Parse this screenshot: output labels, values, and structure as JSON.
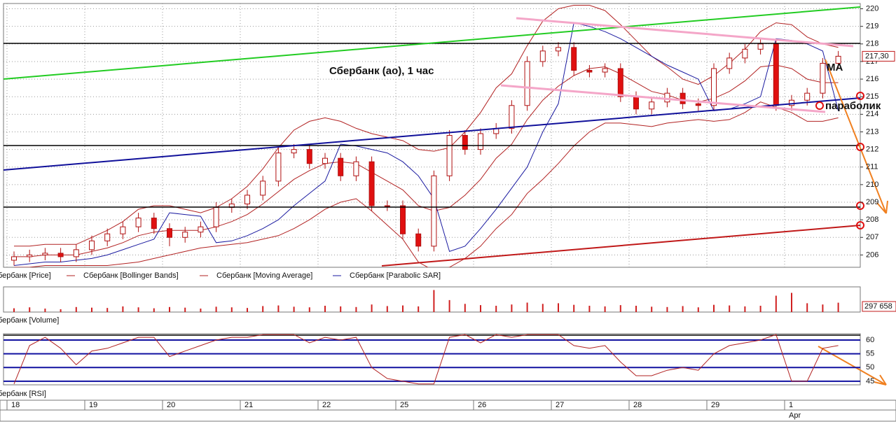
{
  "chart_data": [
    {
      "type": "candlestick",
      "name": "бербанк [Price]",
      "title": "Сбербанк (ао),   1 час",
      "annotations": [
        "MA",
        "параболик"
      ],
      "categories": [
        "18",
        null,
        null,
        null,
        null,
        "19",
        null,
        null,
        null,
        null,
        "20",
        null,
        null,
        null,
        null,
        "21",
        null,
        null,
        null,
        null,
        "22",
        null,
        null,
        null,
        null,
        "25",
        null,
        null,
        null,
        null,
        "26",
        null,
        null,
        null,
        null,
        "27",
        null,
        null,
        null,
        null,
        "28",
        null,
        null,
        null,
        null,
        "29",
        null,
        null,
        null,
        null,
        "1",
        null,
        null,
        null
      ],
      "x_sublabel": "Apr",
      "open": [
        205.7,
        205.9,
        206.0,
        206.1,
        205.9,
        206.3,
        206.8,
        207.2,
        207.6,
        208.1,
        207.5,
        207.0,
        207.3,
        207.6,
        208.7,
        208.9,
        209.4,
        210.2,
        211.8,
        212.0,
        211.2,
        211.5,
        210.5,
        211.3,
        208.8,
        208.8,
        207.2,
        206.5,
        210.5,
        212.8,
        212.0,
        212.9,
        213.2,
        214.5,
        217.0,
        217.6,
        217.8,
        216.5,
        216.4,
        216.6,
        215.0,
        214.3,
        214.7,
        215.2,
        214.6,
        214.5,
        216.6,
        217.2,
        217.7,
        218.0,
        214.5,
        214.8,
        215.2,
        216.9
      ],
      "high": [
        206.2,
        206.3,
        206.4,
        206.4,
        206.6,
        207.1,
        207.5,
        207.9,
        208.4,
        208.4,
        207.8,
        207.6,
        207.9,
        209.0,
        209.2,
        209.7,
        210.5,
        212.1,
        212.3,
        212.3,
        211.8,
        211.8,
        211.6,
        211.6,
        209.1,
        209.1,
        207.5,
        210.8,
        213.1,
        213.1,
        213.2,
        213.5,
        214.8,
        217.3,
        217.9,
        218.1,
        218.1,
        216.8,
        216.9,
        216.9,
        215.3,
        215.0,
        215.5,
        215.5,
        214.9,
        216.9,
        217.5,
        218.0,
        218.3,
        218.3,
        215.1,
        215.5,
        217.2,
        217.6
      ],
      "low": [
        205.4,
        205.6,
        205.7,
        205.6,
        205.6,
        206.0,
        206.5,
        206.9,
        207.3,
        207.2,
        206.5,
        206.7,
        207.0,
        207.3,
        208.4,
        208.6,
        209.1,
        209.9,
        211.5,
        210.9,
        210.9,
        210.2,
        210.2,
        208.5,
        208.5,
        206.9,
        206.2,
        206.2,
        210.2,
        211.7,
        211.7,
        212.6,
        212.9,
        214.2,
        216.7,
        217.3,
        216.2,
        216.1,
        216.1,
        214.7,
        214.0,
        214.0,
        214.4,
        214.3,
        214.2,
        214.2,
        216.3,
        216.9,
        217.4,
        214.2,
        214.2,
        214.5,
        214.9,
        216.6
      ],
      "close": [
        205.9,
        206.0,
        206.1,
        205.9,
        206.3,
        206.8,
        207.2,
        207.6,
        208.1,
        207.5,
        207.0,
        207.3,
        207.6,
        208.7,
        208.9,
        209.4,
        210.2,
        211.8,
        212.0,
        211.2,
        211.5,
        210.5,
        211.3,
        208.8,
        208.8,
        207.2,
        206.5,
        210.5,
        212.8,
        212.0,
        212.9,
        213.2,
        214.5,
        217.0,
        217.6,
        217.8,
        216.5,
        216.4,
        216.6,
        215.0,
        214.3,
        214.7,
        215.2,
        214.6,
        214.5,
        216.6,
        217.2,
        217.7,
        218.0,
        214.5,
        214.8,
        215.2,
        216.9,
        217.3
      ],
      "up_color": "#ffffff",
      "down_color": "#e01010",
      "edge_color": "#b01010",
      "series": [
        {
          "name": "Сбербанк [Bollinger Bands]",
          "color": "#b22222",
          "upper": [
            206.5,
            206.5,
            206.6,
            206.6,
            206.6,
            207.0,
            207.4,
            207.9,
            208.6,
            208.8,
            208.8,
            208.6,
            208.4,
            208.7,
            209.2,
            209.9,
            210.9,
            212.1,
            213.1,
            213.6,
            213.8,
            213.6,
            213.2,
            212.9,
            212.7,
            212.5,
            212.0,
            211.9,
            212.1,
            213.0,
            214.1,
            215.5,
            216.3,
            217.9,
            219.3,
            220.0,
            220.2,
            220.2,
            219.9,
            219.1,
            218.2,
            217.3,
            216.7,
            216.0,
            215.7,
            216.2,
            216.9,
            217.7,
            218.7,
            219.2,
            219.1,
            218.4,
            218.0,
            217.8
          ],
          "lower": [
            205.3,
            205.3,
            205.4,
            205.4,
            205.4,
            205.4,
            205.4,
            205.5,
            205.6,
            205.8,
            206.0,
            206.2,
            206.4,
            206.5,
            206.6,
            206.7,
            206.9,
            207.1,
            207.5,
            208.0,
            208.6,
            209.0,
            209.2,
            208.5,
            207.7,
            206.9,
            205.6,
            205.1,
            205.3,
            205.8,
            206.5,
            207.5,
            208.3,
            209.5,
            210.3,
            211.2,
            212.2,
            213.0,
            213.5,
            213.5,
            213.4,
            213.3,
            213.5,
            213.6,
            213.7,
            213.6,
            213.7,
            214.1,
            214.7,
            214.4,
            214.1,
            213.6,
            213.6,
            213.8
          ]
        },
        {
          "name": "Сбербанк [Moving Average]",
          "color": "#b22222",
          "values": [
            205.9,
            205.9,
            206.0,
            206.0,
            206.0,
            206.2,
            206.4,
            206.7,
            207.1,
            207.3,
            207.4,
            207.4,
            207.4,
            207.6,
            207.9,
            208.3,
            208.9,
            209.6,
            210.3,
            210.8,
            211.2,
            211.3,
            211.2,
            210.7,
            210.2,
            209.7,
            208.8,
            208.5,
            208.7,
            209.4,
            210.3,
            211.5,
            212.3,
            213.7,
            214.8,
            215.6,
            216.2,
            216.6,
            216.7,
            216.3,
            215.8,
            215.3,
            215.1,
            214.8,
            214.7,
            214.9,
            215.3,
            215.9,
            216.7,
            216.8,
            216.6,
            216.0,
            215.8,
            215.8
          ]
        },
        {
          "name": "Сбербанк [Parabolic SAR]",
          "color": "#1a1aa0",
          "values": [
            205.4,
            205.5,
            205.6,
            205.6,
            205.7,
            205.8,
            206.0,
            206.3,
            206.6,
            206.9,
            208.4,
            208.3,
            208.2,
            206.7,
            206.8,
            207.1,
            207.5,
            208.0,
            208.8,
            209.5,
            210.2,
            212.3,
            212.2,
            212.0,
            211.8,
            211.3,
            210.5,
            209.2,
            206.2,
            206.5,
            207.5,
            208.6,
            209.8,
            211.0,
            213.0,
            214.6,
            219.2,
            219.0,
            218.7,
            218.3,
            217.8,
            217.3,
            216.8,
            216.4,
            216.0,
            214.2,
            214.3,
            214.6,
            215.0,
            218.3,
            218.2,
            218.0,
            217.6,
            214.2
          ]
        }
      ],
      "ylim": [
        205.3,
        220.3
      ],
      "yticks": [
        206,
        207,
        208,
        209,
        210,
        211,
        212,
        213,
        214,
        215,
        216,
        217,
        218,
        219,
        220
      ],
      "grid": true,
      "marker": {
        "value": 217.3,
        "label": "217,30"
      }
    },
    {
      "type": "bar",
      "name": "бербанк [Volume]",
      "color": "#d02020",
      "values": [
        120000,
        150000,
        110000,
        90000,
        160000,
        140000,
        130000,
        180000,
        150000,
        120000,
        160000,
        140000,
        110000,
        170000,
        150000,
        130000,
        190000,
        210000,
        170000,
        150000,
        200000,
        180000,
        160000,
        240000,
        190000,
        210000,
        180000,
        700000,
        380000,
        260000,
        220000,
        200000,
        240000,
        300000,
        260000,
        280000,
        230000,
        200000,
        180000,
        220000,
        200000,
        170000,
        160000,
        190000,
        150000,
        230000,
        210000,
        180000,
        200000,
        520000,
        610000,
        280000,
        240000,
        297658
      ],
      "ylim": [
        0,
        800000
      ],
      "marker": {
        "value": 297658,
        "label": "297 658"
      }
    },
    {
      "type": "line",
      "name": "бербанк [RSI]",
      "color": "#b22222",
      "values": [
        44,
        58,
        61,
        57,
        51,
        56,
        57,
        59,
        61,
        61,
        54,
        56,
        58,
        60,
        61,
        61,
        62,
        62,
        62,
        59,
        61,
        60,
        61,
        50,
        46,
        45,
        44,
        44,
        61,
        62,
        59,
        62,
        61,
        62,
        62,
        62,
        58,
        57,
        58,
        52,
        47,
        47,
        49,
        50,
        49,
        55,
        58,
        59,
        60,
        62,
        45,
        45,
        57,
        58
      ],
      "ylim": [
        43.7,
        62.3
      ],
      "yticks": [
        45,
        50,
        55,
        60
      ]
    }
  ]
}
